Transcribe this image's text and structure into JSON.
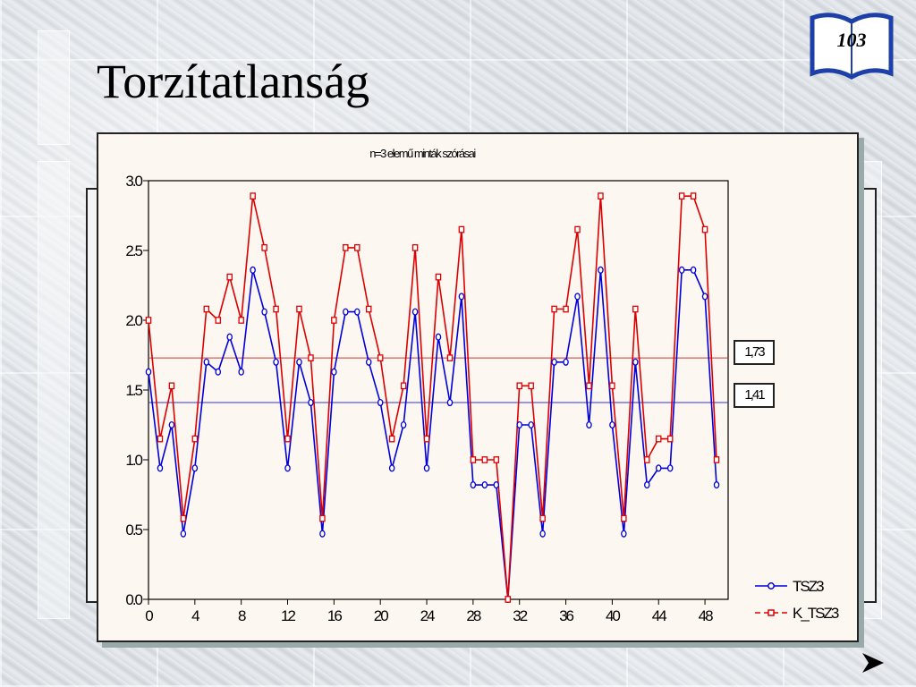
{
  "slide": {
    "title": "Torzítatlanság",
    "page_number": "103"
  },
  "icons": {
    "page_badge": "open-book-icon",
    "nav": "next-arrow-icon"
  },
  "chart_data": {
    "type": "line",
    "title": "n=3 elemű minták szórásai",
    "xlabel": "",
    "ylabel": "",
    "xlim": [
      0,
      50
    ],
    "ylim": [
      0,
      3
    ],
    "x_ticks": [
      "0",
      "4",
      "8",
      "12",
      "16",
      "20",
      "24",
      "28",
      "32",
      "36",
      "40",
      "44",
      "48"
    ],
    "y_ticks": [
      "0.0",
      "0.5",
      "1.0",
      "1.5",
      "2.0",
      "2.5",
      "3.0"
    ],
    "x": [
      0,
      1,
      2,
      3,
      4,
      5,
      6,
      7,
      8,
      9,
      10,
      11,
      12,
      13,
      14,
      15,
      16,
      17,
      18,
      19,
      20,
      21,
      22,
      23,
      24,
      25,
      26,
      27,
      28,
      29,
      30,
      31,
      32,
      33,
      34,
      35,
      36,
      37,
      38,
      39,
      40,
      41,
      42,
      43,
      44,
      45,
      46,
      47,
      48,
      49
    ],
    "series": [
      {
        "name": "TSZ3",
        "color": "#0000dd",
        "marker": "circle",
        "values": [
          1.63,
          0.94,
          1.25,
          0.47,
          0.94,
          1.7,
          1.63,
          1.88,
          1.63,
          2.36,
          2.06,
          1.7,
          0.94,
          1.7,
          1.41,
          0.47,
          1.63,
          2.06,
          2.06,
          1.7,
          1.41,
          0.94,
          1.25,
          2.06,
          0.94,
          1.88,
          1.41,
          2.17,
          0.82,
          0.82,
          0.82,
          0.0,
          1.25,
          1.25,
          0.47,
          1.7,
          1.7,
          2.17,
          1.25,
          2.36,
          1.25,
          0.47,
          1.7,
          0.82,
          0.94,
          0.94,
          2.36,
          2.36,
          2.17,
          0.82
        ]
      },
      {
        "name": "K_TSZ3",
        "color": "#dd0000",
        "marker": "square",
        "values": [
          2.0,
          1.15,
          1.53,
          0.58,
          1.15,
          2.08,
          2.0,
          2.31,
          2.0,
          2.89,
          2.52,
          2.08,
          1.15,
          2.08,
          1.73,
          0.58,
          2.0,
          2.52,
          2.52,
          2.08,
          1.73,
          1.15,
          1.53,
          2.52,
          1.15,
          2.31,
          1.73,
          2.65,
          1.0,
          1.0,
          1.0,
          0.0,
          1.53,
          1.53,
          0.58,
          2.08,
          2.08,
          2.65,
          1.53,
          2.89,
          1.53,
          0.58,
          2.08,
          1.0,
          1.15,
          1.15,
          2.89,
          2.89,
          2.65,
          1.0
        ]
      }
    ],
    "reference_lines": [
      {
        "value": 1.73,
        "label": "1,73",
        "color": "#cc3333"
      },
      {
        "value": 1.41,
        "label": "1,41",
        "color": "#3333cc"
      }
    ],
    "legend": {
      "placement": "bottom-right",
      "entries": [
        "TSZ3",
        "K_TSZ3"
      ]
    },
    "grid": false
  }
}
